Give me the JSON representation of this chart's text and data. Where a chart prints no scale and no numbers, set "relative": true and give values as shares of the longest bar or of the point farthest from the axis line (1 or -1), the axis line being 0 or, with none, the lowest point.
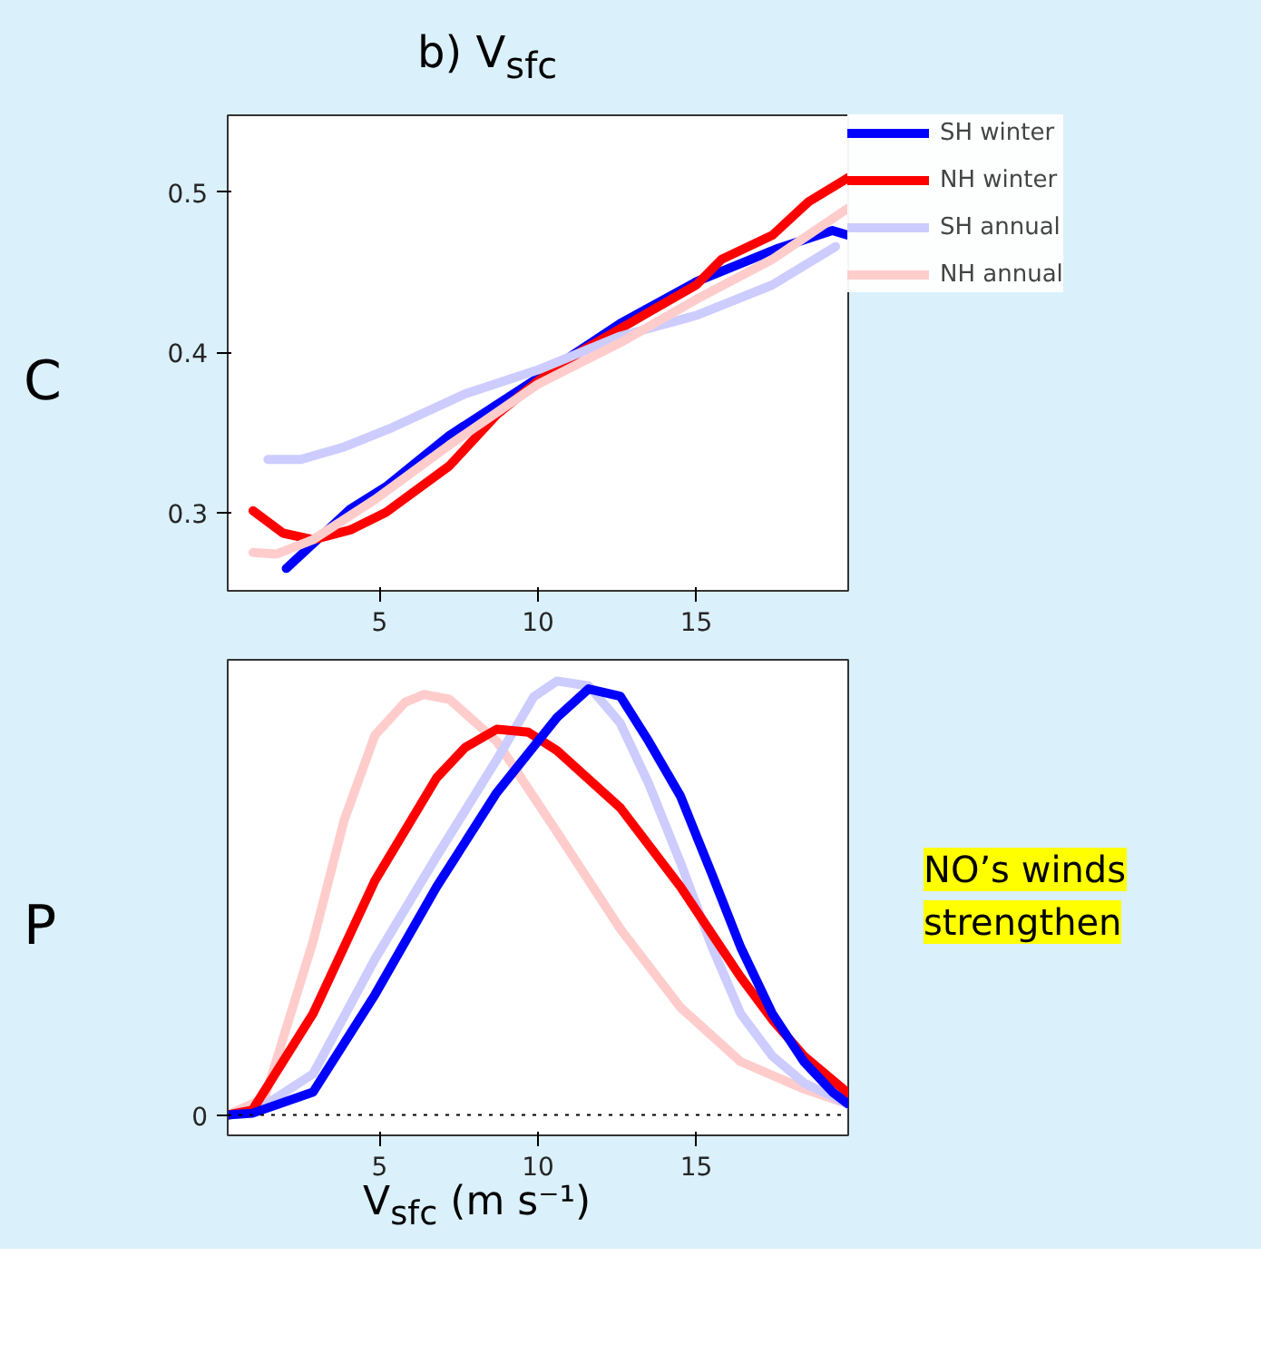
{
  "chart_data": [
    {
      "type": "line",
      "title": "b) V$_{sfc}$",
      "ylabel": "C",
      "xlim": [
        0.2,
        19.8
      ],
      "ylim": [
        0.251,
        0.548
      ],
      "xticks": [
        5,
        10,
        15
      ],
      "yticks": [
        0.3,
        0.4,
        0.5
      ],
      "legend": "right",
      "series": [
        {
          "name": "SH winter",
          "color": "#0000ff",
          "x": [
            2.05,
            4.07,
            5.2,
            7.2,
            10,
            12.6,
            15,
            17.6,
            19.3,
            19.8
          ],
          "values": [
            0.265,
            0.302,
            0.316,
            0.348,
            0.384,
            0.418,
            0.444,
            0.465,
            0.476,
            0.473
          ]
        },
        {
          "name": "NH winter",
          "color": "#ff0000",
          "x": [
            1,
            1.95,
            2.9,
            4.07,
            5.2,
            7.2,
            8.7,
            10,
            11.4,
            13.5,
            15,
            15.8,
            17.4,
            18.55,
            19.8
          ],
          "values": [
            0.301,
            0.287,
            0.283,
            0.289,
            0.3,
            0.329,
            0.361,
            0.382,
            0.401,
            0.425,
            0.442,
            0.458,
            0.473,
            0.494,
            0.509
          ]
        },
        {
          "name": "SH annual",
          "color": "#ccccff",
          "x": [
            1.47,
            2.5,
            3.9,
            5.4,
            7.7,
            10,
            12.6,
            15,
            17.4,
            19.4
          ],
          "values": [
            0.333,
            0.333,
            0.341,
            0.353,
            0.374,
            0.389,
            0.41,
            0.423,
            0.442,
            0.466
          ]
        },
        {
          "name": "NH annual",
          "color": "#ffcccc",
          "x": [
            1,
            1.75,
            2.9,
            4.85,
            7.2,
            10,
            12.6,
            15,
            17.4,
            19.8
          ],
          "values": [
            0.275,
            0.274,
            0.283,
            0.308,
            0.342,
            0.38,
            0.406,
            0.433,
            0.458,
            0.49
          ]
        }
      ]
    },
    {
      "type": "line",
      "relative": true,
      "ylabel": "P",
      "xlabel": "V$_{sfc}$ (m s⁻¹)",
      "xlim": [
        0.2,
        19.8
      ],
      "xticks": [
        5,
        10,
        15
      ],
      "ref_lines": [
        {
          "axis": "y",
          "value": 0,
          "label": "0",
          "color": "#000000",
          "line_style": "dotted"
        }
      ],
      "annotations": [
        "NO’s winds strengthen"
      ],
      "series": [
        {
          "color": "#ffcccc",
          "x": [
            0.2,
            1.37,
            2.9,
            3.88,
            4.85,
            5.8,
            6.4,
            7.2,
            8.7,
            10.6,
            12.6,
            14.5,
            16.4,
            18.4,
            19.8
          ],
          "values": [
            0,
            0.039,
            0.401,
            0.68,
            0.875,
            0.951,
            0.969,
            0.958,
            0.861,
            0.652,
            0.429,
            0.248,
            0.123,
            0.06,
            0.025
          ]
        },
        {
          "color": "#ccccff",
          "x": [
            0.2,
            0.98,
            2.9,
            4.85,
            6.8,
            8.7,
            9.87,
            10.6,
            11.6,
            12.6,
            13.5,
            14.5,
            15.5,
            16.4,
            17.4,
            18.4,
            19.8
          ],
          "values": [
            0,
            0.004,
            0.095,
            0.359,
            0.596,
            0.819,
            0.964,
            1.0,
            0.989,
            0.903,
            0.763,
            0.582,
            0.387,
            0.234,
            0.136,
            0.074,
            0.025
          ]
        },
        {
          "color": "#ff0000",
          "x": [
            0.2,
            0.98,
            2.9,
            4.85,
            6.8,
            7.7,
            8.7,
            9.7,
            10.6,
            12.6,
            14.5,
            16.4,
            17.4,
            18.4,
            19.8
          ],
          "values": [
            0,
            0.011,
            0.234,
            0.54,
            0.777,
            0.847,
            0.889,
            0.882,
            0.84,
            0.708,
            0.526,
            0.318,
            0.22,
            0.136,
            0.05
          ]
        },
        {
          "color": "#0000ff",
          "x": [
            0.2,
            0.98,
            2.9,
            4.85,
            6.8,
            8.7,
            10.6,
            11.6,
            12.6,
            13.5,
            14.5,
            15.5,
            16.4,
            17.4,
            18.4,
            19.3,
            19.8
          ],
          "values": [
            0,
            0.004,
            0.053,
            0.277,
            0.526,
            0.743,
            0.916,
            0.982,
            0.965,
            0.861,
            0.735,
            0.554,
            0.387,
            0.234,
            0.123,
            0.053,
            0.025
          ]
        }
      ]
    }
  ]
}
